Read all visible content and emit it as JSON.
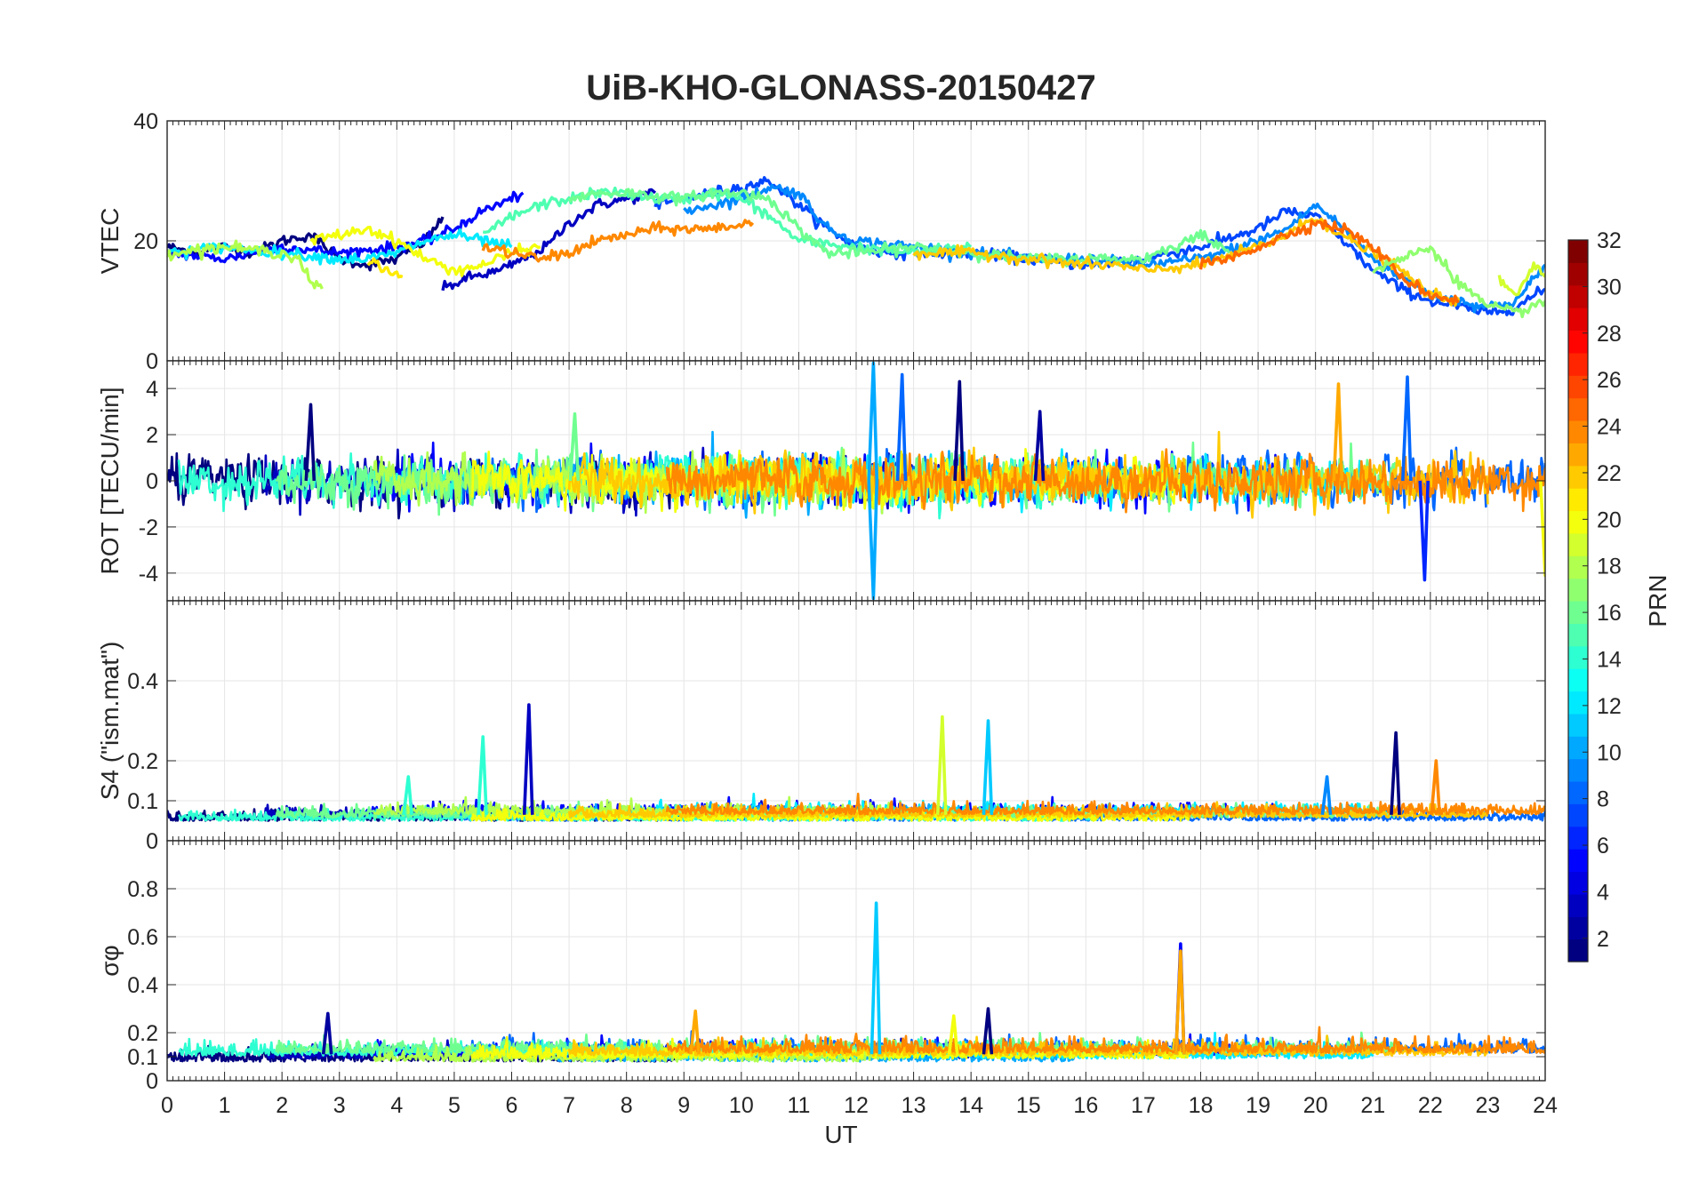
{
  "figure": {
    "title": "UiB-KHO-GLONASS-20150427",
    "xlabel": "UT",
    "colorbar_label": "PRN"
  },
  "colors": {
    "axis": "#262626",
    "grid": "#e6e6e6",
    "background": "#ffffff"
  },
  "chart_data": [
    {
      "type": "line",
      "panel": "VTEC",
      "ylabel": "VTEC",
      "xlim": [
        0,
        24
      ],
      "ylim": [
        0,
        40
      ],
      "yticks": [
        0,
        20,
        40
      ],
      "grid": true,
      "series": [
        {
          "prn": 1,
          "x": [
            0,
            0.5,
            1,
            1.5,
            2,
            2.5,
            3,
            3.5,
            4,
            4.5,
            4.8
          ],
          "y": [
            19,
            18,
            19,
            18,
            20,
            21,
            17,
            16,
            17,
            20,
            24
          ]
        },
        {
          "prn": 3,
          "x": [
            4.8,
            5.3,
            5.8,
            6.2,
            6.6,
            7,
            7.5,
            8,
            8.5
          ],
          "y": [
            12,
            14,
            15,
            17,
            19,
            23,
            26,
            27,
            28
          ]
        },
        {
          "prn": 5,
          "x": [
            0,
            1,
            2,
            3,
            4,
            4.5,
            5,
            5.5,
            6,
            6.2
          ],
          "y": [
            18,
            17,
            19,
            18,
            19,
            20,
            22,
            25,
            27,
            28
          ]
        },
        {
          "prn": 7,
          "x": [
            8.5,
            9,
            9.5,
            10,
            10.5,
            11,
            11.5,
            12,
            12.5,
            13,
            14,
            15,
            16,
            17,
            18,
            19,
            19.5,
            20,
            20.5,
            21,
            21.5,
            22,
            22.5,
            23,
            23.5,
            24
          ],
          "y": [
            26,
            27,
            28,
            29,
            30,
            26,
            22,
            19,
            18,
            18,
            18,
            17,
            16,
            17,
            19,
            22,
            25,
            24,
            20,
            15,
            12,
            10,
            9,
            8,
            9,
            12
          ]
        },
        {
          "prn": 9,
          "x": [
            9,
            10,
            10.5,
            11,
            11.5,
            12,
            13,
            14,
            15,
            16,
            17,
            18,
            19,
            19.5,
            20,
            20.5,
            21,
            21.5,
            22,
            23,
            23.5,
            24
          ],
          "y": [
            25,
            27,
            29,
            28,
            22,
            20,
            19,
            18,
            17,
            17,
            16,
            17,
            20,
            22,
            26,
            22,
            17,
            14,
            11,
            9,
            10,
            16
          ]
        },
        {
          "prn": 12,
          "x": [
            0,
            1,
            2,
            3,
            3.5,
            4,
            4.5,
            5,
            5.5,
            6
          ],
          "y": [
            18,
            19,
            18,
            17,
            17,
            18,
            20,
            21,
            20,
            19
          ]
        },
        {
          "prn": 15,
          "x": [
            5.5,
            6,
            6.5,
            7,
            7.5,
            8,
            8.5,
            9,
            9.5,
            10,
            10.5,
            11,
            12,
            13,
            14
          ],
          "y": [
            21,
            24,
            26,
            27,
            28,
            28,
            27,
            27,
            28,
            27,
            24,
            20,
            19,
            18,
            19
          ]
        },
        {
          "prn": 16,
          "x": [
            7,
            7.5,
            8,
            9,
            9.5,
            10,
            10.5,
            11,
            11.5,
            12,
            13,
            14,
            15,
            16,
            17,
            17.5,
            18,
            18.5
          ],
          "y": [
            27,
            28,
            28,
            27,
            28,
            28,
            27,
            22,
            18,
            18,
            19,
            18,
            17,
            17,
            17,
            19,
            21,
            18
          ]
        },
        {
          "prn": 18,
          "x": [
            0,
            1,
            2,
            2.3,
            2.5,
            2.7
          ],
          "y": [
            18,
            19,
            18,
            17,
            13,
            12
          ]
        },
        {
          "prn": 20,
          "x": [
            2.5,
            3,
            3.5,
            4,
            4.5,
            5,
            5.5,
            6,
            6.5
          ],
          "y": [
            20,
            21,
            22,
            20,
            17,
            15,
            16,
            18,
            19
          ]
        },
        {
          "prn": 21,
          "x": [
            3.5,
            3.8,
            4.1
          ],
          "y": [
            17,
            15,
            14
          ]
        },
        {
          "prn": 24,
          "x": [
            5.5,
            6,
            6.5,
            7,
            7.5,
            8,
            8.5,
            9,
            9.5,
            10.2
          ],
          "y": [
            19,
            18,
            17,
            18,
            20,
            21,
            22,
            22,
            22,
            23
          ]
        },
        {
          "prn": 22,
          "x": [
            13,
            14,
            15,
            16,
            16.5,
            17,
            18,
            19,
            19.5,
            20,
            20.3,
            20.6,
            21,
            21.5,
            22,
            22.5
          ],
          "y": [
            18,
            18,
            17,
            16,
            16,
            15,
            16,
            19,
            21,
            24,
            22,
            20,
            18,
            15,
            11,
            10
          ]
        },
        {
          "prn": 25,
          "x": [
            18,
            18.5,
            19,
            19.5,
            20,
            20.5,
            21,
            21.5,
            22,
            22.5
          ],
          "y": [
            16,
            17,
            19,
            21,
            23,
            22,
            19,
            14,
            11,
            10
          ]
        },
        {
          "prn": 17,
          "x": [
            21,
            21.5,
            22,
            22.5,
            23,
            23.5,
            24
          ],
          "y": [
            15,
            17,
            19,
            13,
            9,
            8,
            10
          ]
        },
        {
          "prn": 19,
          "x": [
            23.2,
            23.5,
            23.8,
            24
          ],
          "y": [
            13,
            11,
            16,
            14
          ]
        }
      ]
    },
    {
      "type": "line",
      "panel": "ROT",
      "ylabel": "ROT [TECU/min]",
      "xlim": [
        0,
        24
      ],
      "ylim": [
        -5.2,
        5.2
      ],
      "yticks": [
        -4,
        -2,
        0,
        2,
        4
      ],
      "grid": true,
      "noise_std": 0.45,
      "spikes": [
        {
          "prn": 1,
          "x": 2.5,
          "y": 3.3
        },
        {
          "prn": 10,
          "x": 12.3,
          "y": 5.1
        },
        {
          "prn": 10,
          "x": 12.3,
          "y": -5.1
        },
        {
          "prn": 8,
          "x": 12.8,
          "y": 4.6
        },
        {
          "prn": 1,
          "x": 13.8,
          "y": 4.3
        },
        {
          "prn": 2,
          "x": 15.2,
          "y": 3.0
        },
        {
          "prn": 23,
          "x": 20.4,
          "y": 4.2
        },
        {
          "prn": 8,
          "x": 21.6,
          "y": 4.5
        },
        {
          "prn": 6,
          "x": 21.9,
          "y": -4.3
        },
        {
          "prn": 16,
          "x": 7.1,
          "y": 2.9
        },
        {
          "prn": 20,
          "x": 24.0,
          "y": -4.1
        }
      ]
    },
    {
      "type": "line",
      "panel": "S4",
      "ylabel": "S4 (\"ism.mat\")",
      "xlim": [
        0,
        24
      ],
      "ylim": [
        0,
        0.6
      ],
      "yticks": [
        0,
        0.1,
        0.2,
        0.4
      ],
      "grid": true,
      "baseline": 0.065,
      "spikes": [
        {
          "prn": 3,
          "x": 6.3,
          "y": 0.34
        },
        {
          "prn": 14,
          "x": 5.5,
          "y": 0.26
        },
        {
          "prn": 19,
          "x": 13.5,
          "y": 0.31
        },
        {
          "prn": 11,
          "x": 14.3,
          "y": 0.3
        },
        {
          "prn": 1,
          "x": 21.4,
          "y": 0.27
        },
        {
          "prn": 24,
          "x": 22.1,
          "y": 0.2
        },
        {
          "prn": 14,
          "x": 4.2,
          "y": 0.16
        },
        {
          "prn": 9,
          "x": 20.2,
          "y": 0.16
        }
      ]
    },
    {
      "type": "line",
      "panel": "sigma_phi",
      "ylabel": "σφ",
      "xlim": [
        0,
        24
      ],
      "ylim": [
        0,
        1
      ],
      "yticks": [
        0,
        0.1,
        0.2,
        0.4,
        0.6,
        0.8
      ],
      "xticks": [
        0,
        1,
        2,
        3,
        4,
        5,
        6,
        7,
        8,
        9,
        10,
        11,
        12,
        13,
        14,
        15,
        16,
        17,
        18,
        19,
        20,
        21,
        22,
        23,
        24
      ],
      "grid": true,
      "baseline": 0.11,
      "spikes": [
        {
          "prn": 11,
          "x": 12.35,
          "y": 0.74
        },
        {
          "prn": 5,
          "x": 17.65,
          "y": 0.57
        },
        {
          "prn": 23,
          "x": 17.65,
          "y": 0.54
        },
        {
          "prn": 23,
          "x": 9.2,
          "y": 0.29
        },
        {
          "prn": 1,
          "x": 14.3,
          "y": 0.3
        },
        {
          "prn": 2,
          "x": 2.8,
          "y": 0.28
        },
        {
          "prn": 20,
          "x": 13.7,
          "y": 0.27
        }
      ]
    },
    {
      "type": "colorbar",
      "label": "PRN",
      "colormap": "jet",
      "range": [
        1,
        32
      ],
      "ticks": [
        2,
        4,
        6,
        8,
        10,
        12,
        14,
        16,
        18,
        20,
        22,
        24,
        26,
        28,
        30,
        32
      ]
    }
  ]
}
